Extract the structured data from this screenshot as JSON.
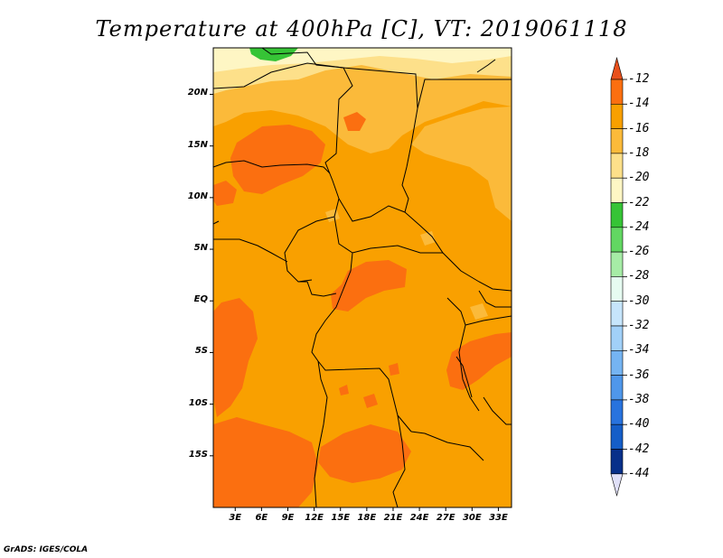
{
  "title": "Temperature at 400hPa [C], VT: 2019061118",
  "footer": "GrADS: IGES/COLA",
  "map": {
    "variable": "Temperature at 400hPa",
    "unit": "C",
    "valid_time": "2019061118",
    "lat_ticks": [
      "20N",
      "15N",
      "10N",
      "5N",
      "EQ",
      "5S",
      "10S",
      "15S"
    ],
    "lon_ticks": [
      "3E",
      "6E",
      "9E",
      "12E",
      "15E",
      "18E",
      "21E",
      "24E",
      "27E",
      "30E",
      "33E"
    ],
    "lon_range": [
      0.5,
      34.5
    ],
    "lat_range": [
      -20,
      24.5
    ]
  },
  "colorbar": {
    "levels": [
      "-12",
      "-14",
      "-16",
      "-18",
      "-20",
      "-22",
      "-24",
      "-26",
      "-28",
      "-30",
      "-32",
      "-34",
      "-36",
      "-38",
      "-40",
      "-42",
      "-44"
    ],
    "colors": [
      "#f24a10",
      "#fb6f10",
      "#f9a000",
      "#fbba3a",
      "#fde08a",
      "#fef6c4",
      "#36c436",
      "#62d762",
      "#a6eca6",
      "#e6fbf1",
      "#c6e5fb",
      "#a1d0f8",
      "#75b4f2",
      "#4f97ea",
      "#2873de",
      "#155ec8",
      "#08308a",
      "#0a0a68"
    ],
    "top_arrow_color": "#e8501c",
    "bottom_arrow_color": "#e0e0f8"
  }
}
